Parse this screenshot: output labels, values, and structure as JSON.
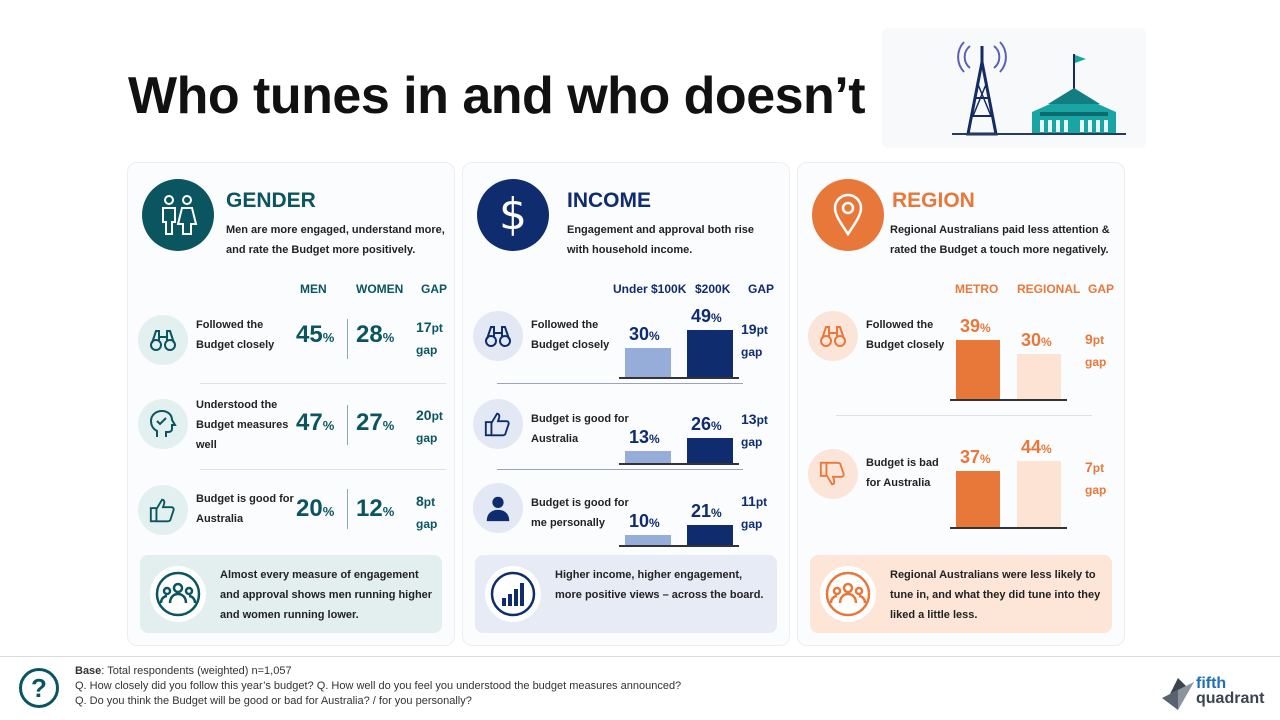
{
  "title": "Who tunes in and who doesn’t",
  "colors": {
    "teal": "#0b5560",
    "navy": "#0e2c6e",
    "orange": "#e8783a",
    "bar_light_navy": "#97add9",
    "bar_light_orange": "#fde3d3"
  },
  "gender": {
    "title": "GENDER",
    "description": "Men are more engaged, understand more, and rate the Budget more positively.",
    "col_men": "MEN",
    "col_women": "WOMEN",
    "col_gap": "GAP",
    "rows": [
      {
        "icon": "binoculars-icon",
        "label": "Followed the Budget closely",
        "men": "45",
        "women": "28",
        "gap": "17",
        "gap_word": "gap"
      },
      {
        "icon": "head-check-icon",
        "label": "Understood the Budget measures well",
        "men": "47",
        "women": "27",
        "gap": "20",
        "gap_word": "gap"
      },
      {
        "icon": "thumbs-up-icon",
        "label": "Budget is good for Australia",
        "men": "20",
        "women": "12",
        "gap": "8",
        "gap_word": "gap"
      }
    ],
    "footer": "Almost every measure of engagement and approval shows men running higher and women running lower."
  },
  "income": {
    "title": "INCOME",
    "description": "Engagement and approval both rise with household income.",
    "col_low": "Under $100K",
    "col_high": "$200K",
    "col_gap": "GAP",
    "rows": [
      {
        "icon": "binoculars-icon",
        "label": "Followed the Budget closely",
        "low": 30,
        "high": 49,
        "gap": "19",
        "gap_word": "gap"
      },
      {
        "icon": "thumbs-up-icon",
        "label": "Budget is good for Australia",
        "low": 13,
        "high": 26,
        "gap": "13",
        "gap_word": "gap"
      },
      {
        "icon": "person-icon",
        "label": "Budget is good for me personally",
        "low": 10,
        "high": 21,
        "gap": "11",
        "gap_word": "gap"
      }
    ],
    "footer": "Higher income, higher engagement, more positive views – across the board."
  },
  "region": {
    "title": "REGION",
    "description": "Regional Australians paid less attention & rated the Budget a touch more negatively.",
    "col_metro": "METRO",
    "col_regional": "REGIONAL",
    "col_gap": "GAP",
    "rows": [
      {
        "icon": "binoculars-icon",
        "label": "Followed the Budget closely",
        "metro": 39,
        "regional": 30,
        "gap": "9",
        "gap_word": "gap"
      },
      {
        "icon": "thumbs-down-icon",
        "label": "Budget is bad for Australia",
        "metro": 37,
        "regional": 44,
        "gap": "7",
        "gap_word": "gap"
      }
    ],
    "footer": "Regional Australians were less likely to tune in, and what they did tune into they liked a little less."
  },
  "units": {
    "percent": "%",
    "pt": "pt"
  },
  "base": {
    "label": "Base",
    "text": ": Total respondents (weighted) n=1,057",
    "q1": "Q. How closely did you follow this year’s budget?  Q. How well do you feel you understood the budget measures announced?",
    "q2": "Q. Do you think the Budget will be good or bad for Australia? / for you personally?"
  },
  "logo": {
    "line1": "fifth",
    "line2": "quadrant"
  }
}
